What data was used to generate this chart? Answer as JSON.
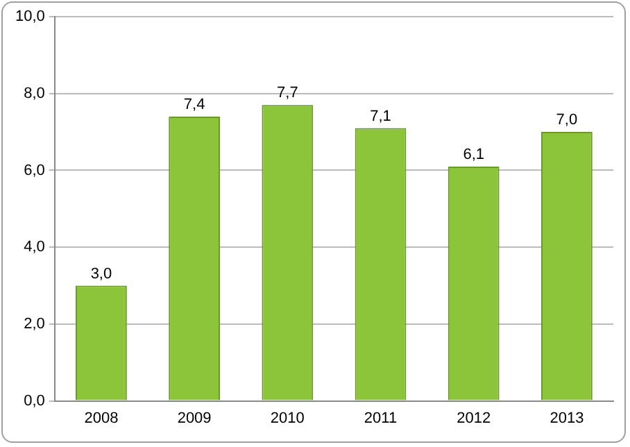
{
  "chart_data": {
    "type": "bar",
    "categories": [
      "2008",
      "2009",
      "2010",
      "2011",
      "2012",
      "2013"
    ],
    "values": [
      3.0,
      7.4,
      7.7,
      7.1,
      6.1,
      7.0
    ],
    "value_labels": [
      "3,0",
      "7,4",
      "7,7",
      "7,1",
      "6,1",
      "7,0"
    ],
    "color": "#8cc43a",
    "ylim": [
      0,
      10
    ],
    "yticks": [
      {
        "value": 0,
        "label": "0,0"
      },
      {
        "value": 2,
        "label": "2,0"
      },
      {
        "value": 4,
        "label": "4,0"
      },
      {
        "value": 6,
        "label": "6,0"
      },
      {
        "value": 8,
        "label": "8,0"
      },
      {
        "value": 10,
        "label": "10,0"
      }
    ],
    "grid": "y",
    "legend": false
  }
}
